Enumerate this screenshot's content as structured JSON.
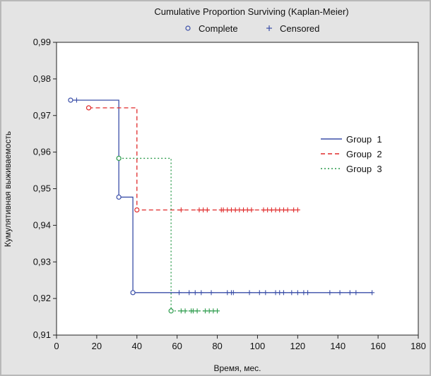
{
  "chart_data": {
    "type": "line",
    "title": "Cumulative Proportion Surviving (Kaplan-Meier)",
    "xlabel": "Время, мес.",
    "ylabel": "Кумулятивная выживаемость",
    "xlim": [
      0,
      180
    ],
    "ylim": [
      0.91,
      0.99
    ],
    "x_ticks": [
      "0",
      "20",
      "40",
      "60",
      "80",
      "100",
      "120",
      "140",
      "160",
      "180"
    ],
    "y_ticks": [
      "0,91",
      "0,92",
      "0,93",
      "0,94",
      "0,95",
      "0,96",
      "0,97",
      "0,98",
      "0,99"
    ],
    "grid": false,
    "marker_legend": [
      {
        "label": "Complete",
        "marker": "circle"
      },
      {
        "label": "Censored",
        "marker": "plus"
      }
    ],
    "legend_position": "right",
    "series": [
      {
        "name": "Group  1",
        "color": "#3b4fa8",
        "dash": "solid",
        "steps": [
          [
            7,
            0.9742
          ],
          [
            31,
            0.9477
          ],
          [
            38,
            0.9216
          ],
          [
            157,
            0.9216
          ]
        ],
        "complete": [
          [
            7,
            0.9742
          ],
          [
            31,
            0.9477
          ],
          [
            38,
            0.9216
          ]
        ],
        "censored": [
          [
            10,
            0.9742
          ],
          [
            61,
            0.9216
          ],
          [
            66,
            0.9216
          ],
          [
            69,
            0.9216
          ],
          [
            72,
            0.9216
          ],
          [
            77,
            0.9216
          ],
          [
            85,
            0.9216
          ],
          [
            87,
            0.9216
          ],
          [
            88,
            0.9216
          ],
          [
            96,
            0.9216
          ],
          [
            101,
            0.9216
          ],
          [
            104,
            0.9216
          ],
          [
            109,
            0.9216
          ],
          [
            111,
            0.9216
          ],
          [
            113,
            0.9216
          ],
          [
            117,
            0.9216
          ],
          [
            120,
            0.9216
          ],
          [
            123,
            0.9216
          ],
          [
            125,
            0.9216
          ],
          [
            136,
            0.9216
          ],
          [
            141,
            0.9216
          ],
          [
            146,
            0.9216
          ],
          [
            149,
            0.9216
          ],
          [
            157,
            0.9216
          ]
        ]
      },
      {
        "name": "Group  2",
        "color": "#e02a2a",
        "dash": "dashed",
        "steps": [
          [
            16,
            0.9721
          ],
          [
            40,
            0.9442
          ],
          [
            120,
            0.9442
          ]
        ],
        "complete": [
          [
            16,
            0.9721
          ],
          [
            40,
            0.9442
          ]
        ],
        "censored": [
          [
            62,
            0.9442
          ],
          [
            71,
            0.9442
          ],
          [
            73,
            0.9442
          ],
          [
            75,
            0.9442
          ],
          [
            82,
            0.9442
          ],
          [
            83,
            0.9442
          ],
          [
            85,
            0.9442
          ],
          [
            87,
            0.9442
          ],
          [
            89,
            0.9442
          ],
          [
            91,
            0.9442
          ],
          [
            93,
            0.9442
          ],
          [
            95,
            0.9442
          ],
          [
            97,
            0.9442
          ],
          [
            103,
            0.9442
          ],
          [
            105,
            0.9442
          ],
          [
            107,
            0.9442
          ],
          [
            109,
            0.9442
          ],
          [
            111,
            0.9442
          ],
          [
            113,
            0.9442
          ],
          [
            115,
            0.9442
          ],
          [
            118,
            0.9442
          ],
          [
            120,
            0.9442
          ]
        ]
      },
      {
        "name": "Group  3",
        "color": "#2a9a4a",
        "dash": "dotted",
        "steps": [
          [
            31,
            0.9583
          ],
          [
            57,
            0.9166
          ],
          [
            80,
            0.9166
          ]
        ],
        "complete": [
          [
            31,
            0.9583
          ],
          [
            57,
            0.9166
          ]
        ],
        "censored": [
          [
            62,
            0.9166
          ],
          [
            64,
            0.9166
          ],
          [
            67,
            0.9166
          ],
          [
            68,
            0.9166
          ],
          [
            70,
            0.9166
          ],
          [
            74,
            0.9166
          ],
          [
            76,
            0.9166
          ],
          [
            78,
            0.9166
          ],
          [
            80,
            0.9166
          ]
        ]
      }
    ]
  }
}
